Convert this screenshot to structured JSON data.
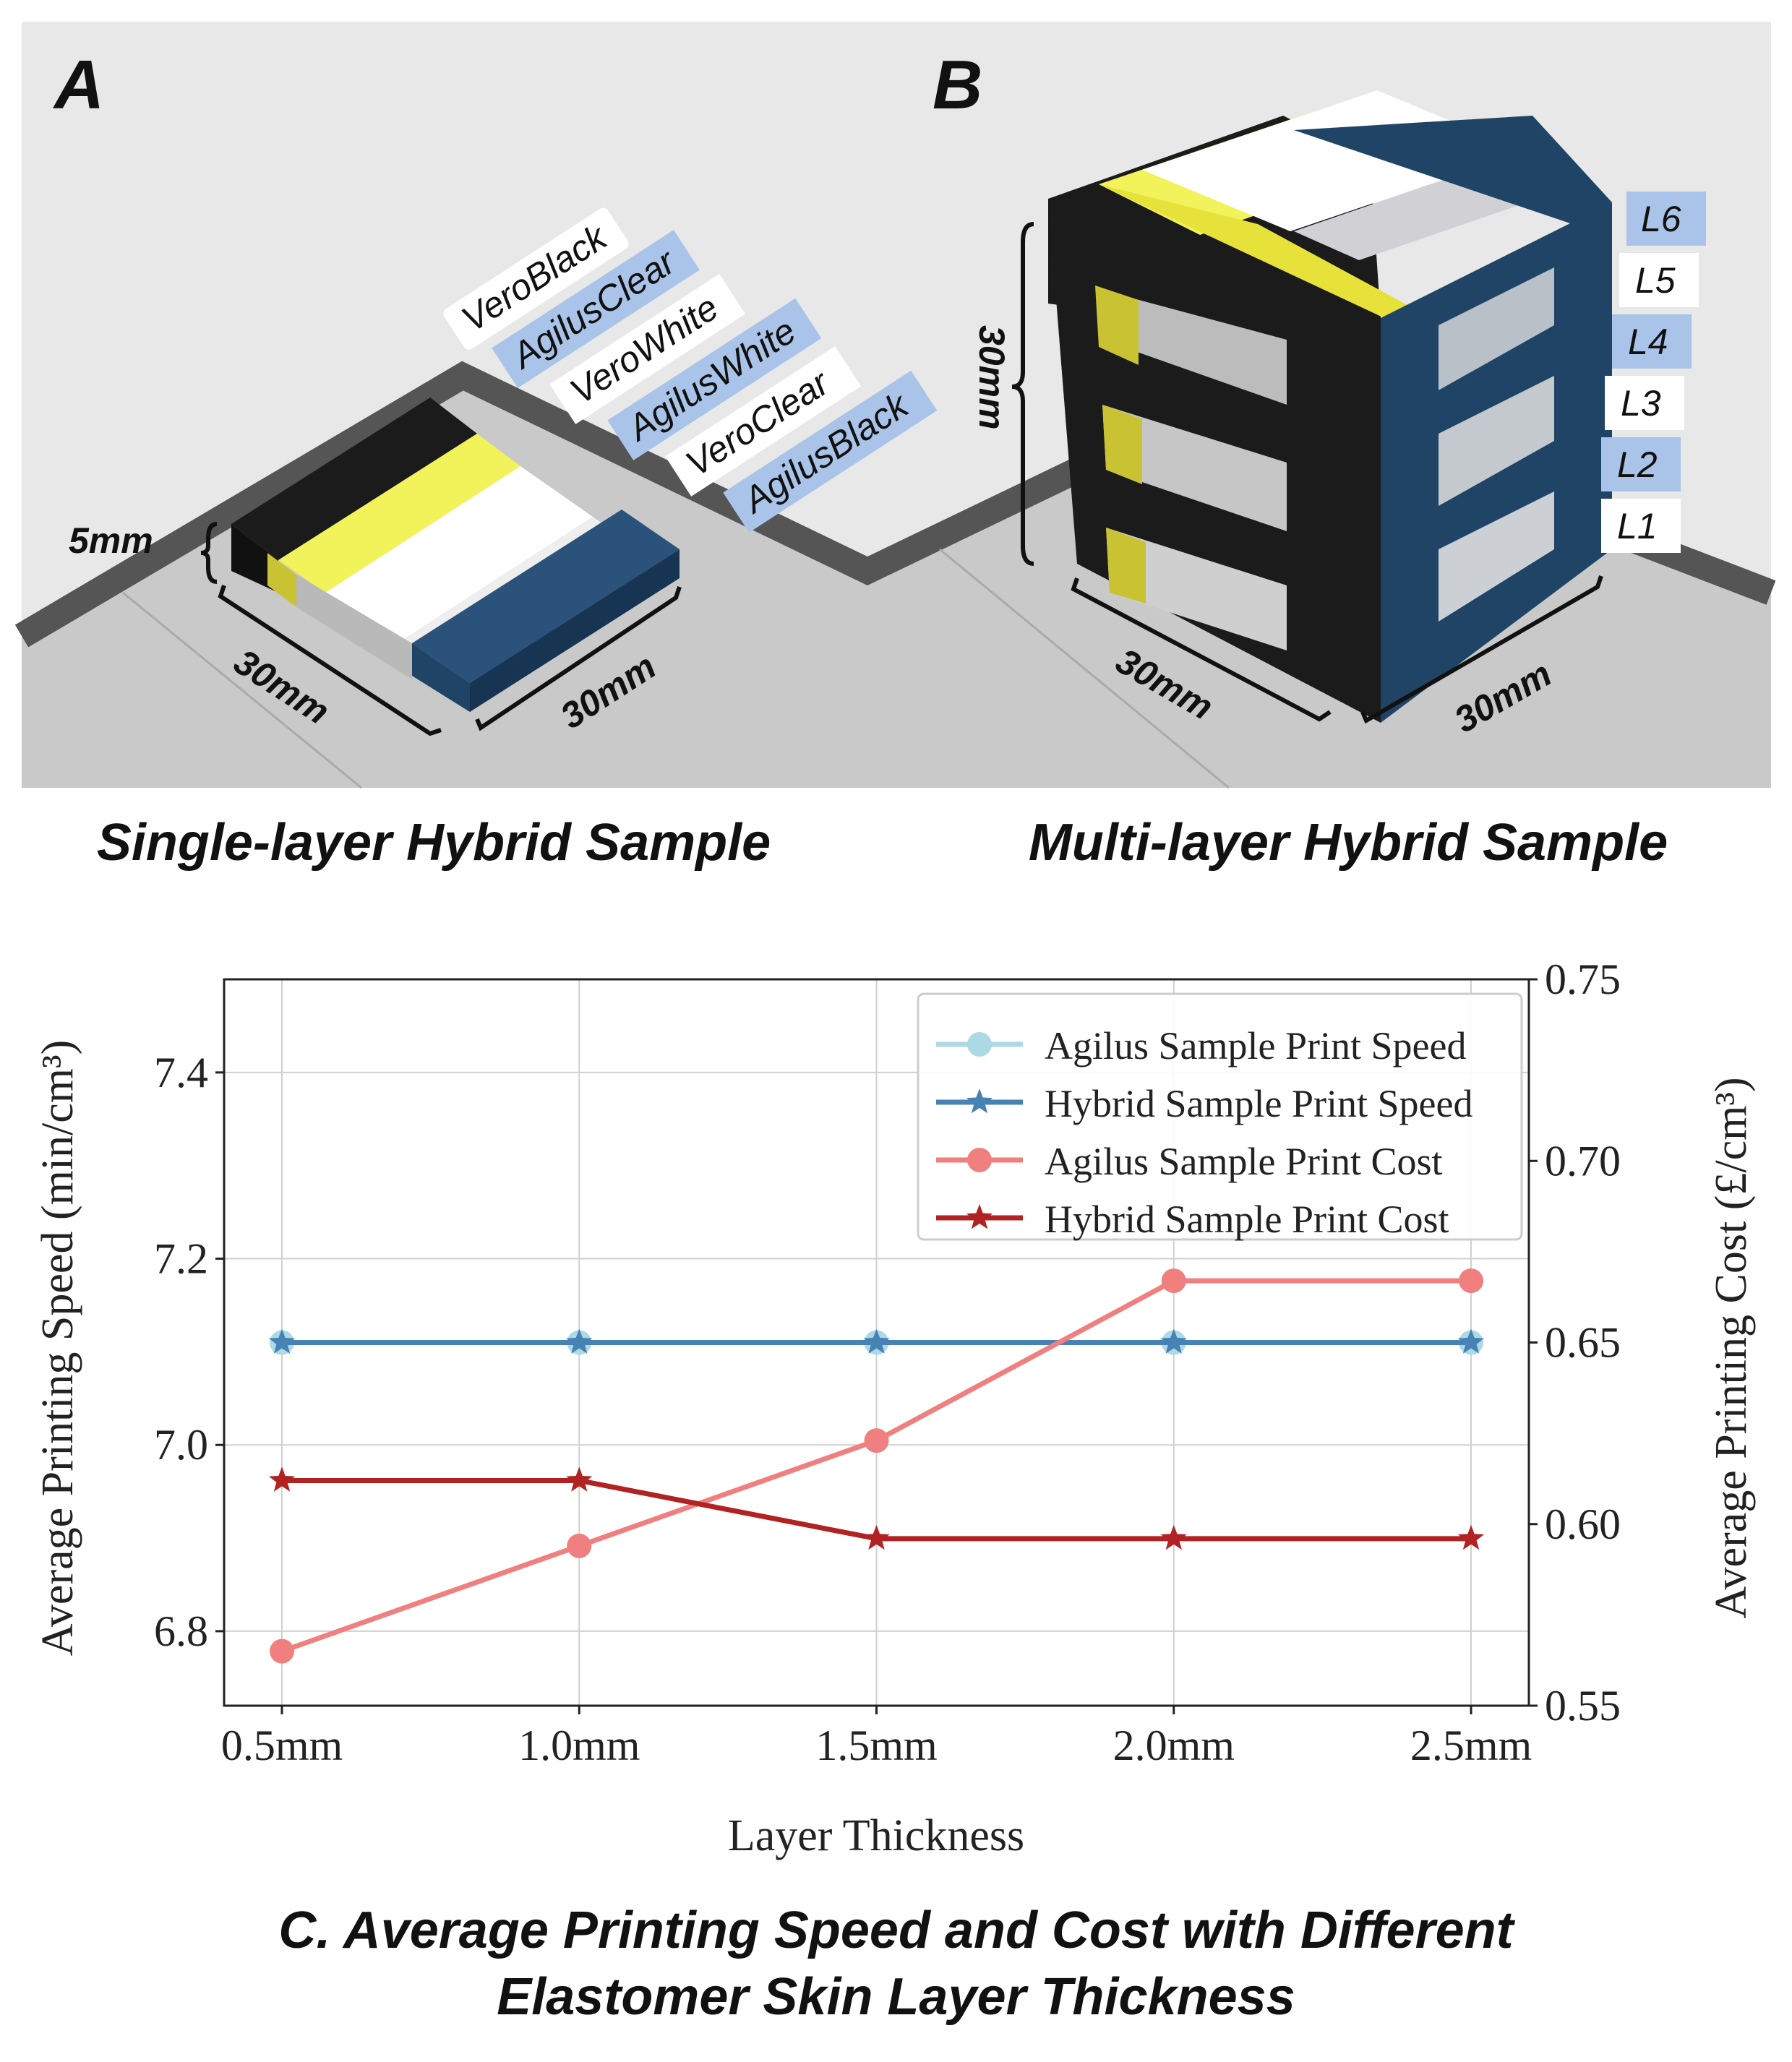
{
  "panel_a": {
    "letter": "A",
    "caption": "Single-layer Hybrid Sample",
    "height_label": "5mm",
    "width_label_left": "30mm",
    "width_label_right": "30mm",
    "materials": [
      "VeroBlack",
      "AgilusClear",
      "VeroWhite",
      "AgilusWhite",
      "VeroClear",
      "AgilusBlack"
    ]
  },
  "panel_b": {
    "letter": "B",
    "caption": "Multi-layer Hybrid Sample",
    "height_label": "30mm",
    "width_label_left": "30mm",
    "width_label_right": "30mm",
    "layers": [
      "L6",
      "L5",
      "L4",
      "L3",
      "L2",
      "L1"
    ]
  },
  "colors": {
    "vero_black": "#1b1b1b",
    "yellow": "#ecec3c",
    "agilus_black_blue": "#1f4466",
    "label_blue": "#a9c4e8",
    "floor": "#c9c9c9",
    "wall": "#e8e8e8",
    "rim": "#555555",
    "agilus_speed": "#add8e6",
    "hybrid_speed": "#4682b4",
    "agilus_cost": "#f08080",
    "hybrid_cost": "#b22222"
  },
  "chart_caption_line1": "C. Average Printing Speed and Cost with Different",
  "chart_caption_line2": "Elastomer Skin Layer Thickness",
  "chart_data": {
    "type": "line",
    "categories": [
      "0.5mm",
      "1.0mm",
      "1.5mm",
      "2.0mm",
      "2.5mm"
    ],
    "xlabel": "Layer Thickness",
    "ylabel_left": "Average Printing Speed (min/cm³)",
    "ylabel_right": "Average Printing Cost (£/cm³)",
    "ylim_left": [
      6.72,
      7.5
    ],
    "ylim_right": [
      0.55,
      0.75
    ],
    "yticks_left": [
      "6.8",
      "7.0",
      "7.2",
      "7.4"
    ],
    "yticks_right": [
      "0.55",
      "0.60",
      "0.65",
      "0.70",
      "0.75"
    ],
    "grid": true,
    "legend_position": "top-right",
    "series": [
      {
        "name": "Agilus Sample Print Speed",
        "axis": "left",
        "marker": "circle",
        "color": "#add8e6",
        "values": [
          7.11,
          7.11,
          7.11,
          7.11,
          7.11
        ]
      },
      {
        "name": "Hybrid Sample Print Speed",
        "axis": "left",
        "marker": "star",
        "color": "#4682b4",
        "values": [
          7.11,
          7.11,
          7.11,
          7.11,
          7.11
        ]
      },
      {
        "name": "Agilus Sample Print Cost",
        "axis": "right",
        "marker": "circle",
        "color": "#f08080",
        "values": [
          0.565,
          0.594,
          0.623,
          0.667,
          0.667
        ]
      },
      {
        "name": "Hybrid Sample Print Cost",
        "axis": "right",
        "marker": "star",
        "color": "#b22222",
        "values": [
          0.612,
          0.612,
          0.596,
          0.596,
          0.596
        ]
      }
    ]
  }
}
